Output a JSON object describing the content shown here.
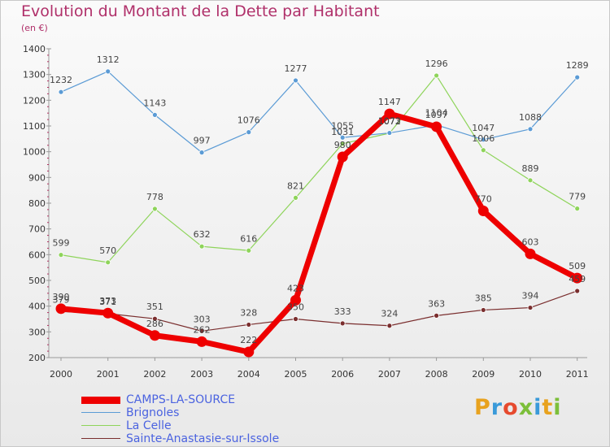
{
  "title": "Evolution du Montant de la Dette par Habitant",
  "unit": "(en €)",
  "logo": {
    "text": "Proxiti",
    "colors": [
      "#e8a21e",
      "#3a9ad9",
      "#e64a2e",
      "#7cbf3a",
      "#3a9ad9",
      "#e8a21e",
      "#7cbf3a"
    ]
  },
  "chart_data": {
    "type": "line",
    "x": [
      "2000",
      "2001",
      "2002",
      "2003",
      "2004",
      "2005",
      "2006",
      "2007",
      "2008",
      "2009",
      "2010",
      "2011"
    ],
    "yticks": [
      "200",
      "300",
      "400",
      "500",
      "600",
      "700",
      "800",
      "900",
      "1000",
      "1100",
      "1200",
      "1300",
      "1400"
    ],
    "ylim": [
      200,
      1400
    ],
    "grid": false,
    "legend_position": "bottom",
    "series": [
      {
        "name": "CAMPS-LA-SOURCE",
        "color": "#ee0000",
        "values": [
          390,
          373,
          286,
          262,
          222,
          423,
          980,
          1147,
          1097,
          770,
          603,
          509
        ],
        "labels": [
          "390",
          "373",
          "286",
          "262",
          "222",
          "423",
          "980",
          "1147",
          "1097",
          "770",
          "603",
          "509"
        ]
      },
      {
        "name": "Brignoles",
        "color": "#5b9bd5",
        "values": [
          1232,
          1312,
          1143,
          997,
          1076,
          1277,
          1055,
          1073,
          1104,
          1047,
          1088,
          1289
        ],
        "labels": [
          "1232",
          "1312",
          "1143",
          "997",
          "1076",
          "1277",
          "1055",
          "1073",
          "1104",
          "1047",
          "1088",
          "1289"
        ]
      },
      {
        "name": "La Celle",
        "color": "#8ed45a",
        "values": [
          599,
          570,
          778,
          632,
          616,
          821,
          1031,
          1072,
          1296,
          1006,
          889,
          779
        ],
        "labels": [
          "599",
          "570",
          "778",
          "632",
          "616",
          "821",
          "1031",
          "1072",
          "1296",
          "1006",
          "889",
          "779"
        ]
      },
      {
        "name": "Sainte-Anastasie-sur-Issole",
        "color": "#7a2e2e",
        "values": [
          379,
          371,
          351,
          303,
          328,
          350,
          333,
          324,
          363,
          385,
          394,
          459
        ],
        "labels": [
          "379",
          "371",
          "351",
          "303",
          "328",
          "350",
          "333",
          "324",
          "363",
          "385",
          "394",
          "459"
        ]
      }
    ]
  }
}
